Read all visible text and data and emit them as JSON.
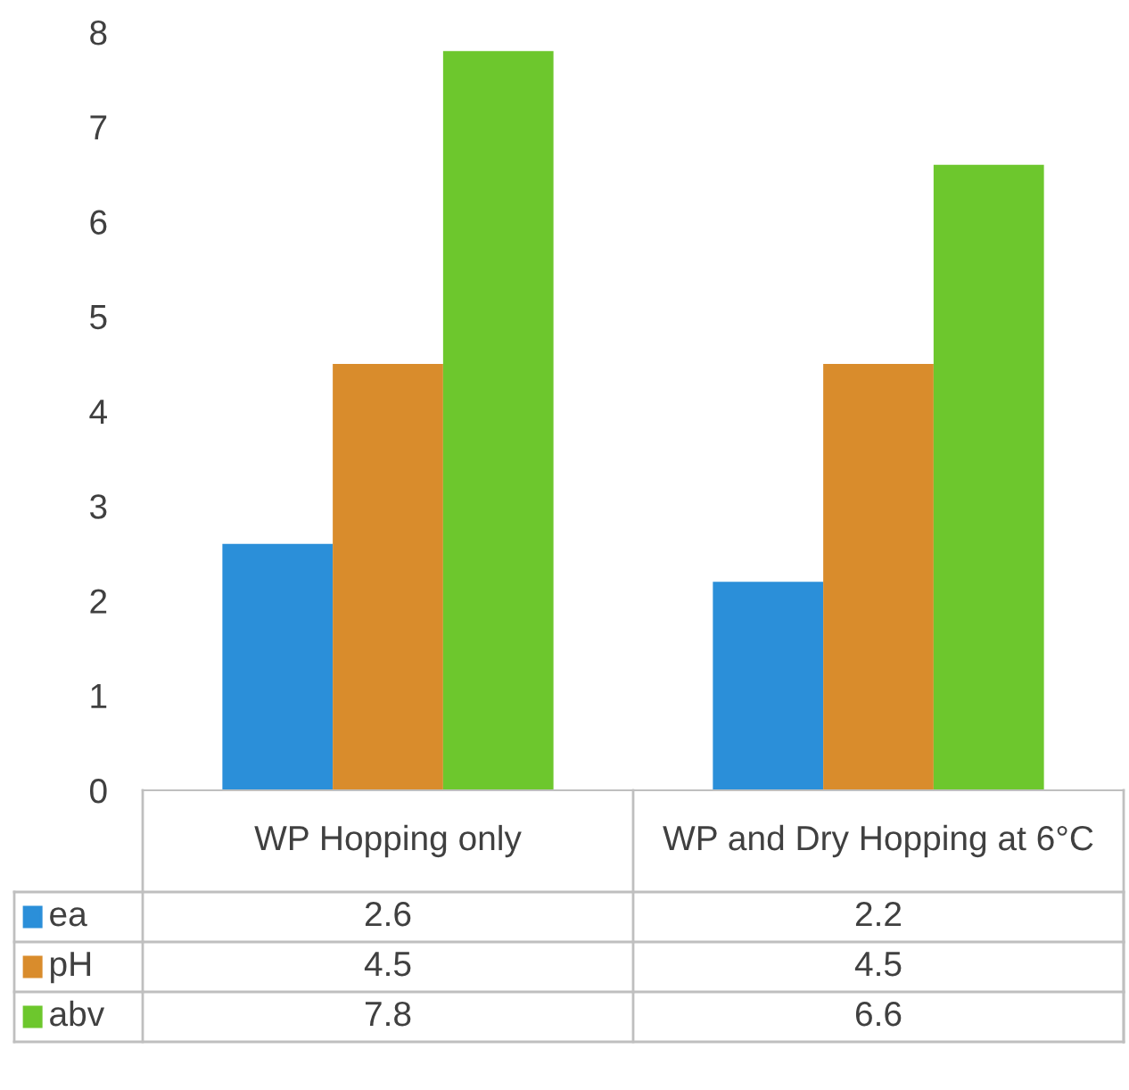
{
  "chart_data": {
    "type": "bar",
    "categories": [
      "WP Hopping only",
      "WP and Dry Hopping at 6°C"
    ],
    "series": [
      {
        "name": "ea",
        "color": "#2b8fd9",
        "values": [
          2.6,
          2.2
        ]
      },
      {
        "name": "pH",
        "color": "#d98c2c",
        "values": [
          4.5,
          4.5
        ]
      },
      {
        "name": "abv",
        "color": "#6dc72d",
        "values": [
          7.8,
          6.6
        ]
      }
    ],
    "ylim": [
      0,
      8
    ],
    "yticks": [
      0,
      1,
      2,
      3,
      4,
      5,
      6,
      7,
      8
    ],
    "grid": false,
    "data_labels": true,
    "legend": "bottom"
  }
}
